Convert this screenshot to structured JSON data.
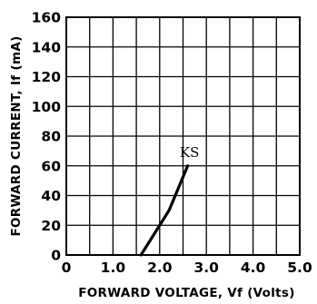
{
  "chart_data": {
    "type": "line",
    "xlabel": "FORWARD VOLTAGE, Vf (Volts)",
    "ylabel": "FORWARD CURRENT, If (mA)",
    "xlim": [
      0,
      5
    ],
    "ylim": [
      0,
      160
    ],
    "x_ticks": [
      0,
      1,
      2,
      3,
      4,
      5
    ],
    "x_tick_labels": [
      "0",
      "1.0",
      "2.0",
      "3.0",
      "4.0",
      "5.0"
    ],
    "y_ticks": [
      0,
      20,
      40,
      60,
      80,
      100,
      120,
      140,
      160
    ],
    "y_tick_labels": [
      "0",
      "20",
      "40",
      "60",
      "80",
      "100",
      "120",
      "140",
      "160"
    ],
    "grid": true,
    "grid_step_x": 0.5,
    "grid_step_y": 20,
    "series": [
      {
        "name": "KS",
        "x": [
          1.6,
          1.8,
          2.0,
          2.2,
          2.4,
          2.6
        ],
        "y": [
          0,
          10,
          20,
          30,
          45,
          60
        ]
      }
    ],
    "colors": {
      "line": "#000000",
      "grid": "#000000",
      "background": "#ffffff"
    }
  }
}
